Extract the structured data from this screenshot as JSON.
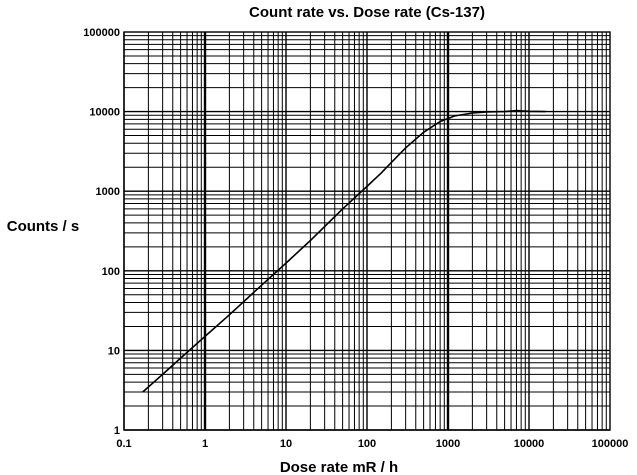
{
  "chart_data": {
    "type": "line",
    "title": "Count rate vs. Dose rate (Cs-137)",
    "xlabel": "Dose rate mR / h",
    "ylabel": "Counts / s",
    "xscale": "log",
    "yscale": "log",
    "xlim": [
      0.1,
      100000
    ],
    "ylim": [
      1,
      100000
    ],
    "grid": true,
    "x_tick_labels": [
      "0.1",
      "1",
      "10",
      "100",
      "1000",
      "10000",
      "100000"
    ],
    "y_tick_labels": [
      "1",
      "10",
      "100",
      "1000",
      "10000",
      "100000"
    ],
    "series": [
      {
        "color": "#000000",
        "x": [
          0.17,
          0.3,
          0.5,
          1,
          2,
          5,
          10,
          20,
          50,
          100,
          150,
          200,
          300,
          500,
          800,
          1200,
          2000,
          3000,
          5000,
          7000,
          10000,
          16000
        ],
        "y": [
          3,
          5,
          8,
          15,
          28,
          66,
          125,
          240,
          600,
          1150,
          1700,
          2300,
          3500,
          5500,
          7500,
          8800,
          9600,
          9900,
          10000,
          10300,
          10100,
          10000
        ]
      }
    ]
  }
}
